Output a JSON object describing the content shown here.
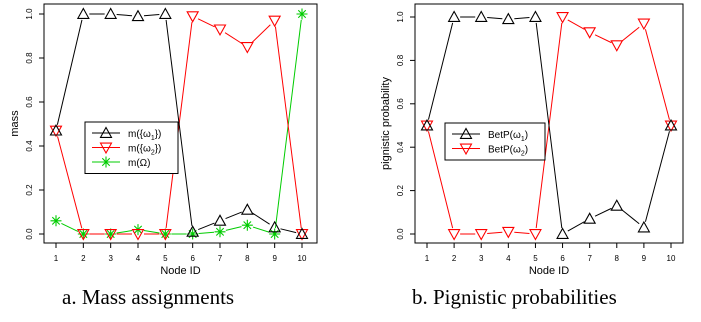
{
  "captions": {
    "a": "a. Mass assignments",
    "b": "b. Pignistic probabilities"
  },
  "chart_data": [
    {
      "type": "line",
      "xlabel": "Node ID",
      "ylabel": "mass",
      "x": [
        1,
        2,
        3,
        4,
        5,
        6,
        7,
        8,
        9,
        10
      ],
      "xlim": [
        1,
        10
      ],
      "ylim": [
        0,
        1
      ],
      "yticks": [
        "0.0",
        "0.2",
        "0.4",
        "0.6",
        "0.8",
        "1.0"
      ],
      "grid": false,
      "legend_position": "center-left",
      "series": [
        {
          "name": "m({ω1})",
          "legend_main": "m({ω",
          "legend_sub": "1",
          "legend_end": "})",
          "color": "#000000",
          "marker": "triangle-up",
          "values": [
            0.47,
            1.0,
            1.0,
            0.99,
            1.0,
            0.01,
            0.06,
            0.11,
            0.03,
            0.0
          ]
        },
        {
          "name": "m({ω2})",
          "legend_main": "m({ω",
          "legend_sub": "2",
          "legend_end": "})",
          "color": "#ff0000",
          "marker": "triangle-down",
          "values": [
            0.47,
            0.0,
            0.0,
            0.0,
            0.0,
            0.99,
            0.93,
            0.85,
            0.97,
            0.0
          ]
        },
        {
          "name": "m(Ω)",
          "legend_main": "m(Ω)",
          "legend_sub": "",
          "legend_end": "",
          "color": "#00cc00",
          "marker": "asterisk",
          "values": [
            0.06,
            0.0,
            0.0,
            0.02,
            0.0,
            0.0,
            0.01,
            0.04,
            0.0,
            1.0
          ]
        }
      ]
    },
    {
      "type": "line",
      "xlabel": "Node ID",
      "ylabel": "pignistic probability",
      "x": [
        1,
        2,
        3,
        4,
        5,
        6,
        7,
        8,
        9,
        10
      ],
      "xlim": [
        1,
        10
      ],
      "ylim": [
        0,
        1
      ],
      "yticks": [
        "0.0",
        "0.2",
        "0.4",
        "0.6",
        "0.8",
        "1.0"
      ],
      "grid": false,
      "legend_position": "center-left",
      "series": [
        {
          "name": "BetP(ω1)",
          "legend_main": "BetP(ω",
          "legend_sub": "1",
          "legend_end": ")",
          "color": "#000000",
          "marker": "triangle-up",
          "values": [
            0.5,
            1.0,
            1.0,
            0.99,
            1.0,
            0.0,
            0.07,
            0.13,
            0.03,
            0.5
          ]
        },
        {
          "name": "BetP(ω2)",
          "legend_main": "BetP(ω",
          "legend_sub": "2",
          "legend_end": ")",
          "color": "#ff0000",
          "marker": "triangle-down",
          "values": [
            0.5,
            0.0,
            0.0,
            0.01,
            0.0,
            1.0,
            0.93,
            0.87,
            0.97,
            0.5
          ]
        }
      ]
    }
  ]
}
